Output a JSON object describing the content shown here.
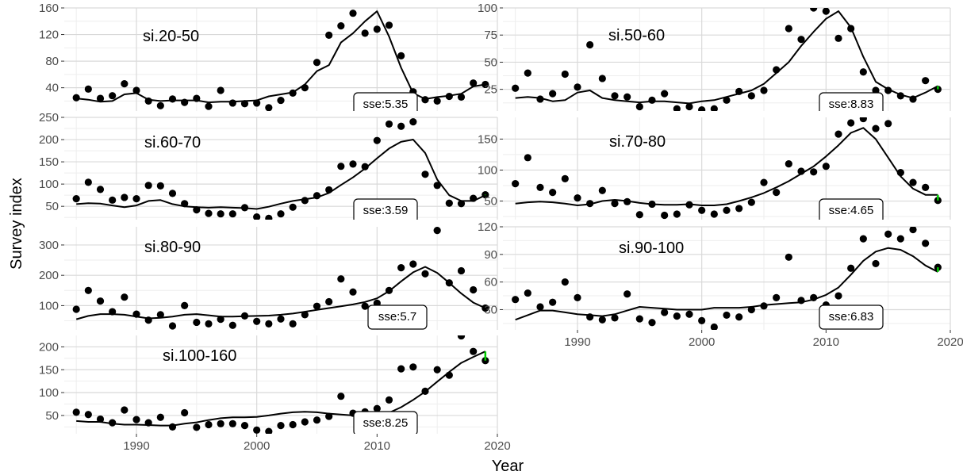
{
  "figure": {
    "xlabel": "Year",
    "ylabel": "Survey index"
  },
  "colors": {
    "panel_bg": "#ffffff",
    "grid_major": "#d9d9d9",
    "grid_minor": "#eeeeee",
    "points": "#000000",
    "fit_line": "#000000",
    "last_point_marker": "#00cc00",
    "tick_text": "#4d4d4d"
  },
  "chart_data": [
    {
      "type": "scatter",
      "title": "si.20-50",
      "sse_label": "sse:5.35",
      "xlim": [
        1984,
        2020
      ],
      "ylim": [
        5,
        160
      ],
      "x_ticks": [
        1990,
        2000,
        2010,
        2020
      ],
      "y_ticks": [
        40,
        80,
        120,
        160
      ],
      "observed": {
        "x": [
          1985,
          1986,
          1987,
          1988,
          1989,
          1990,
          1991,
          1992,
          1993,
          1994,
          1995,
          1996,
          1997,
          1998,
          1999,
          2000,
          2001,
          2002,
          2003,
          2004,
          2005,
          2006,
          2007,
          2008,
          2009,
          2010,
          2011,
          2012,
          2013,
          2014,
          2015,
          2016,
          2017,
          2018,
          2019
        ],
        "y": [
          25,
          38,
          24,
          28,
          46,
          36,
          20,
          13,
          23,
          18,
          24,
          12,
          36,
          17,
          16,
          17,
          10,
          21,
          32,
          40,
          78,
          119,
          133,
          152,
          122,
          128,
          134,
          88,
          34,
          22,
          20,
          27,
          26,
          47,
          45
        ]
      },
      "fitted": {
        "x": [
          1985,
          1986,
          1987,
          1988,
          1989,
          1990,
          1991,
          1992,
          1993,
          1994,
          1995,
          1996,
          1997,
          1998,
          1999,
          2000,
          2001,
          2002,
          2003,
          2004,
          2005,
          2006,
          2007,
          2008,
          2009,
          2010,
          2011,
          2012,
          2013,
          2014,
          2015,
          2016,
          2017,
          2018,
          2019
        ],
        "y": [
          24,
          22,
          19,
          20,
          30,
          32,
          22,
          20,
          21,
          21,
          21,
          18,
          19,
          19,
          20,
          21,
          27,
          30,
          33,
          45,
          65,
          74,
          108,
          122,
          140,
          155,
          117,
          70,
          32,
          23,
          26,
          28,
          31,
          42,
          45
        ]
      }
    },
    {
      "type": "scatter",
      "title": "si.60-70",
      "sse_label": "sse:3.59",
      "xlim": [
        1984,
        2020
      ],
      "ylim": [
        20,
        250
      ],
      "x_ticks": [
        1990,
        2000,
        2010,
        2020
      ],
      "y_ticks": [
        50,
        100,
        150,
        200,
        250
      ],
      "observed": {
        "x": [
          1985,
          1986,
          1987,
          1988,
          1989,
          1990,
          1991,
          1992,
          1993,
          1994,
          1995,
          1996,
          1997,
          1998,
          1999,
          2000,
          2001,
          2002,
          2003,
          2004,
          2005,
          2006,
          2007,
          2008,
          2009,
          2010,
          2011,
          2012,
          2013,
          2014,
          2015,
          2016,
          2017,
          2018,
          2019
        ],
        "y": [
          67,
          104,
          88,
          64,
          70,
          67,
          97,
          96,
          79,
          56,
          42,
          34,
          33,
          33,
          47,
          26,
          23,
          33,
          48,
          63,
          74,
          87,
          140,
          145,
          139,
          198,
          235,
          230,
          240,
          122,
          97,
          57,
          56,
          68,
          76
        ]
      },
      "fitted": {
        "x": [
          1985,
          1986,
          1987,
          1988,
          1989,
          1990,
          1991,
          1992,
          1993,
          1994,
          1995,
          1996,
          1997,
          1998,
          1999,
          2000,
          2001,
          2002,
          2003,
          2004,
          2005,
          2006,
          2007,
          2008,
          2009,
          2010,
          2011,
          2012,
          2013,
          2014,
          2015,
          2016,
          2017,
          2018,
          2019
        ],
        "y": [
          55,
          57,
          56,
          52,
          48,
          52,
          62,
          64,
          55,
          50,
          48,
          47,
          48,
          47,
          46,
          44,
          49,
          56,
          62,
          66,
          70,
          80,
          98,
          115,
          135,
          158,
          180,
          195,
          200,
          170,
          110,
          75,
          62,
          62,
          75
        ]
      }
    },
    {
      "type": "scatter",
      "title": "si.80-90",
      "sse_label": "sse:5.7",
      "xlim": [
        1984,
        2020
      ],
      "ylim": [
        20,
        360
      ],
      "x_ticks": [
        1990,
        2000,
        2010,
        2020
      ],
      "y_ticks": [
        100,
        200,
        300
      ],
      "observed": {
        "x": [
          1985,
          1986,
          1987,
          1988,
          1989,
          1990,
          1991,
          1992,
          1993,
          1994,
          1995,
          1996,
          1997,
          1998,
          1999,
          2000,
          2001,
          2002,
          2003,
          2004,
          2005,
          2006,
          2007,
          2008,
          2009,
          2010,
          2011,
          2012,
          2013,
          2014,
          2015,
          2016,
          2017,
          2018,
          2019
        ],
        "y": [
          88,
          150,
          115,
          80,
          128,
          72,
          52,
          70,
          33,
          100,
          45,
          40,
          55,
          35,
          66,
          48,
          40,
          56,
          40,
          70,
          98,
          113,
          188,
          145,
          98,
          108,
          150,
          225,
          237,
          205,
          348,
          175,
          215,
          152,
          92
        ]
      },
      "fitted": {
        "x": [
          1985,
          1986,
          1987,
          1988,
          1989,
          1990,
          1991,
          1992,
          1993,
          1994,
          1995,
          1996,
          1997,
          1998,
          1999,
          2000,
          2001,
          2002,
          2003,
          2004,
          2005,
          2006,
          2007,
          2008,
          2009,
          2010,
          2011,
          2012,
          2013,
          2014,
          2015,
          2016,
          2017,
          2018,
          2019
        ],
        "y": [
          55,
          66,
          72,
          72,
          70,
          64,
          58,
          60,
          64,
          70,
          72,
          68,
          64,
          64,
          65,
          66,
          67,
          70,
          74,
          80,
          86,
          92,
          98,
          104,
          112,
          124,
          148,
          180,
          210,
          228,
          208,
          175,
          140,
          110,
          92
        ]
      }
    },
    {
      "type": "scatter",
      "title": "si.100-160",
      "sse_label": "sse:8.25",
      "xlim": [
        1984,
        2020
      ],
      "ylim": [
        10,
        225
      ],
      "x_ticks": [
        1990,
        2000,
        2010,
        2020
      ],
      "y_ticks": [
        50,
        100,
        150,
        200
      ],
      "observed": {
        "x": [
          1985,
          1986,
          1987,
          1988,
          1989,
          1990,
          1991,
          1992,
          1993,
          1994,
          1995,
          1996,
          1997,
          1998,
          1999,
          2000,
          2001,
          2002,
          2003,
          2004,
          2005,
          2006,
          2007,
          2008,
          2009,
          2010,
          2011,
          2012,
          2013,
          2014,
          2015,
          2016,
          2017,
          2018,
          2019
        ],
        "y": [
          57,
          52,
          42,
          34,
          62,
          41,
          34,
          46,
          25,
          56,
          24,
          30,
          32,
          32,
          28,
          18,
          15,
          28,
          30,
          36,
          40,
          48,
          92,
          55,
          58,
          65,
          84,
          152,
          156,
          103,
          150,
          138,
          224,
          190,
          170
        ]
      },
      "fitted": {
        "x": [
          1985,
          1986,
          1987,
          1988,
          1989,
          1990,
          1991,
          1992,
          1993,
          1994,
          1995,
          1996,
          1997,
          1998,
          1999,
          2000,
          2001,
          2002,
          2003,
          2004,
          2005,
          2006,
          2007,
          2008,
          2009,
          2010,
          2011,
          2012,
          2013,
          2014,
          2015,
          2016,
          2017,
          2018,
          2019
        ],
        "y": [
          38,
          36,
          36,
          32,
          30,
          30,
          29,
          28,
          28,
          32,
          35,
          40,
          44,
          46,
          46,
          47,
          50,
          54,
          57,
          58,
          57,
          54,
          52,
          50,
          48,
          48,
          56,
          68,
          84,
          102,
          124,
          145,
          165,
          178,
          190
        ]
      }
    },
    {
      "type": "scatter",
      "title": "si.50-60",
      "sse_label": "sse:8.83",
      "xlim": [
        1984,
        2020
      ],
      "ylim": [
        5,
        100
      ],
      "x_ticks": [
        1990,
        2000,
        2010,
        2020
      ],
      "y_ticks": [
        25,
        50,
        75,
        100
      ],
      "observed": {
        "x": [
          1985,
          1986,
          1987,
          1988,
          1989,
          1990,
          1991,
          1992,
          1993,
          1994,
          1995,
          1996,
          1997,
          1998,
          1999,
          2000,
          2001,
          2002,
          2003,
          2004,
          2005,
          2006,
          2007,
          2008,
          2009,
          2010,
          2011,
          2012,
          2013,
          2014,
          2015,
          2016,
          2017,
          2018,
          2019
        ],
        "y": [
          26,
          40,
          16,
          21,
          39,
          27,
          66,
          35,
          19,
          18,
          9,
          15,
          21,
          7,
          9,
          6,
          7,
          15,
          23,
          19,
          24,
          43,
          81,
          71,
          100,
          97,
          72,
          81,
          41,
          24,
          24,
          19,
          16,
          33,
          25
        ]
      },
      "fitted": {
        "x": [
          1985,
          1986,
          1987,
          1988,
          1989,
          1990,
          1991,
          1992,
          1993,
          1994,
          1995,
          1996,
          1997,
          1998,
          1999,
          2000,
          2001,
          2002,
          2003,
          2004,
          2005,
          2006,
          2007,
          2008,
          2009,
          2010,
          2011,
          2012,
          2013,
          2014,
          2015,
          2016,
          2017,
          2018,
          2019
        ],
        "y": [
          17,
          18,
          17,
          14,
          15,
          22,
          24,
          17,
          15,
          14,
          13,
          14,
          14,
          13,
          12,
          14,
          15,
          18,
          21,
          24,
          30,
          40,
          50,
          65,
          78,
          90,
          97,
          82,
          55,
          32,
          25,
          20,
          17,
          22,
          28
        ]
      }
    },
    {
      "type": "scatter",
      "title": "si.70-80",
      "sse_label": "sse:4.65",
      "xlim": [
        1984,
        2020
      ],
      "ylim": [
        20,
        185
      ],
      "x_ticks": [
        1990,
        2000,
        2010,
        2020
      ],
      "y_ticks": [
        50,
        100,
        150
      ],
      "observed": {
        "x": [
          1985,
          1986,
          1987,
          1988,
          1989,
          1990,
          1991,
          1992,
          1993,
          1994,
          1995,
          1996,
          1997,
          1998,
          1999,
          2000,
          2001,
          2002,
          2003,
          2004,
          2005,
          2006,
          2007,
          2008,
          2009,
          2010,
          2011,
          2012,
          2013,
          2014,
          2015,
          2016,
          2017,
          2018,
          2019
        ],
        "y": [
          78,
          120,
          72,
          64,
          86,
          55,
          46,
          67,
          46,
          49,
          28,
          45,
          27,
          29,
          44,
          35,
          29,
          35,
          38,
          48,
          80,
          64,
          110,
          98,
          97,
          106,
          158,
          176,
          183,
          167,
          175,
          96,
          80,
          72,
          51
        ]
      },
      "fitted": {
        "x": [
          1985,
          1986,
          1987,
          1988,
          1989,
          1990,
          1991,
          1992,
          1993,
          1994,
          1995,
          1996,
          1997,
          1998,
          1999,
          2000,
          2001,
          2002,
          2003,
          2004,
          2005,
          2006,
          2007,
          2008,
          2009,
          2010,
          2011,
          2012,
          2013,
          2014,
          2015,
          2016,
          2017,
          2018,
          2019
        ],
        "y": [
          46,
          48,
          49,
          48,
          46,
          43,
          45,
          50,
          52,
          50,
          47,
          45,
          44,
          44,
          45,
          43,
          43,
          45,
          50,
          56,
          63,
          72,
          82,
          94,
          106,
          122,
          140,
          160,
          168,
          150,
          120,
          90,
          70,
          60,
          60
        ]
      }
    },
    {
      "type": "scatter",
      "title": "si.90-100",
      "sse_label": "sse:6.83",
      "xlim": [
        1984,
        2020
      ],
      "ylim": [
        8,
        120
      ],
      "x_ticks": [
        1990,
        2000,
        2010,
        2020
      ],
      "y_ticks": [
        30,
        60,
        90,
        120
      ],
      "observed": {
        "x": [
          1985,
          1986,
          1987,
          1988,
          1989,
          1990,
          1991,
          1992,
          1993,
          1994,
          1995,
          1996,
          1997,
          1998,
          1999,
          2000,
          2001,
          2002,
          2003,
          2004,
          2005,
          2006,
          2007,
          2008,
          2009,
          2010,
          2011,
          2012,
          2013,
          2014,
          2015,
          2016,
          2017,
          2018,
          2019
        ],
        "y": [
          41,
          48,
          33,
          38,
          60,
          43,
          22,
          19,
          21,
          47,
          20,
          16,
          27,
          23,
          25,
          18,
          11,
          24,
          22,
          30,
          34,
          43,
          87,
          40,
          43,
          35,
          45,
          75,
          107,
          80,
          112,
          107,
          117,
          102,
          76
        ]
      },
      "fitted": {
        "x": [
          1985,
          1986,
          1987,
          1988,
          1989,
          1990,
          1991,
          1992,
          1993,
          1994,
          1995,
          1996,
          1997,
          1998,
          1999,
          2000,
          2001,
          2002,
          2003,
          2004,
          2005,
          2006,
          2007,
          2008,
          2009,
          2010,
          2011,
          2012,
          2013,
          2014,
          2015,
          2016,
          2017,
          2018,
          2019
        ],
        "y": [
          19,
          24,
          29,
          29,
          27,
          25,
          24,
          23,
          25,
          29,
          33,
          32,
          31,
          30,
          30,
          30,
          32,
          32,
          32,
          33,
          35,
          36,
          37,
          38,
          41,
          46,
          54,
          68,
          83,
          93,
          97,
          95,
          88,
          78,
          71
        ]
      }
    }
  ]
}
